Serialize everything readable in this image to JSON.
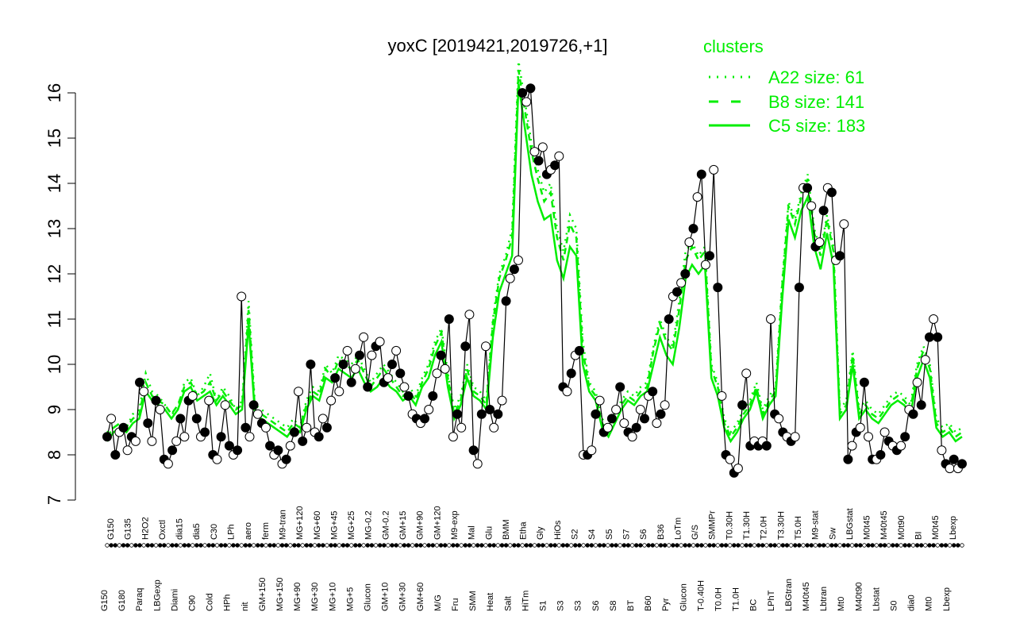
{
  "chart_data": {
    "type": "line",
    "title": "yoxC [2019421,2019726,+1]",
    "xlabel": "",
    "ylabel": "",
    "ylim": [
      7,
      16.6
    ],
    "yticks": [
      7,
      8,
      9,
      10,
      11,
      12,
      13,
      14,
      15,
      16
    ],
    "grid": false,
    "legend": {
      "title": "clusters",
      "placement": "top-right",
      "entries": [
        {
          "label": "A22 size: 61",
          "style": "dotted",
          "color": "#00ee00"
        },
        {
          "label": "B8 size: 141",
          "style": "dashed",
          "color": "#00ee00"
        },
        {
          "label": "C5 size: 183",
          "style": "solid",
          "color": "#00ee00"
        }
      ]
    },
    "x_labels_upper": [
      "G150",
      "G135",
      "H2O2",
      "Oxctl",
      "dia15",
      "dia5",
      "C30",
      "LPh",
      "aero",
      "ferm",
      "M9-tran",
      "MG+120",
      "MG+60",
      "MG+45",
      "MG+25",
      "MG-0.2",
      "GM-0.2",
      "GM+15",
      "GM+90",
      "GM+120",
      "M9-exp",
      "Mal",
      "Glu",
      "BMM",
      "Etha",
      "Gly",
      "HiOs",
      "S2",
      "S4",
      "S5",
      "S7",
      "S6",
      "B36",
      "LoTm",
      "G/S",
      "SMMPr",
      "T0.30H",
      "T1.30H",
      "T2.0H",
      "T3.30H",
      "T5.0H",
      "M9-stat",
      "Sw",
      "LBGstat",
      "M0t45",
      "M40t45",
      "M0t90",
      "BI",
      "M0t45",
      "Lbexp"
    ],
    "x_labels_lower": [
      "G150",
      "G180",
      "Paraq",
      "LBGexp",
      "Diami",
      "C90",
      "Cold",
      "HPh",
      "nit",
      "GM+150",
      "MG+150",
      "MG+90",
      "MG+30",
      "MG+10",
      "MG+5",
      "Glucon",
      "GM+10",
      "GM+30",
      "GM+60",
      "M/G",
      "Fru",
      "SMM",
      "Heat",
      "Salt",
      "HiTm",
      "S1",
      "S3",
      "S3",
      "S6",
      "S8",
      "BT",
      "B60",
      "Pyr",
      "Glucon",
      "T-0.40H",
      "T0.0H",
      "T1.0H",
      "BC",
      "LPhT",
      "LBGtran",
      "M40t45",
      "Lbtran",
      "Mt0",
      "M40t90",
      "Lbstat",
      "S0",
      "dia0",
      "Mt0",
      "Lbexp"
    ],
    "series": [
      {
        "name": "yoxC",
        "values": [
          8.4,
          8.8,
          8.0,
          8.5,
          8.6,
          8.1,
          8.4,
          8.3,
          9.6,
          9.4,
          8.7,
          8.3,
          9.2,
          9.0,
          7.9,
          7.8,
          8.1,
          8.3,
          8.8,
          8.4,
          9.2,
          9.3,
          8.8,
          8.4,
          8.5,
          9.2,
          8.0,
          7.9,
          8.4,
          9.1,
          8.2,
          8.0,
          8.1,
          11.5,
          8.6,
          8.4,
          9.1,
          8.9,
          8.7,
          8.6,
          8.2,
          8.0,
          8.1,
          7.8,
          7.9,
          8.2,
          8.5,
          9.4,
          8.3,
          8.6,
          10.0,
          8.5,
          8.4,
          8.8,
          8.6,
          9.2,
          9.7,
          9.4,
          10.0,
          10.3,
          9.6,
          9.9,
          10.2,
          10.6,
          9.5,
          10.2,
          10.4,
          10.5,
          9.6,
          9.7,
          10.0,
          10.3,
          9.8,
          9.5,
          9.3,
          8.9,
          8.8,
          8.7,
          8.8,
          9.0,
          9.3,
          9.8,
          10.2,
          9.9,
          11.0,
          8.4,
          8.9,
          8.6,
          10.4,
          11.1,
          8.1,
          7.8,
          8.9,
          10.4,
          9.0,
          8.6,
          8.9,
          9.2,
          11.4,
          11.9,
          12.1,
          12.3,
          16.0,
          15.8,
          16.1,
          14.7,
          14.5,
          14.8,
          14.2,
          14.3,
          14.4,
          14.6,
          9.5,
          9.4,
          9.8,
          10.2,
          10.3,
          8.0,
          8.0,
          8.1,
          8.9,
          9.2,
          8.5,
          8.6,
          8.8,
          9.0,
          9.5,
          8.7,
          8.5,
          8.4,
          8.6,
          9.0,
          8.8,
          9.3,
          9.4,
          8.7,
          8.9,
          9.1,
          11.0,
          11.5,
          11.6,
          11.8,
          12.0,
          12.7,
          13.0,
          13.7,
          14.2,
          12.2,
          12.4,
          14.3,
          11.7,
          9.3,
          8.0,
          7.9,
          7.6,
          7.7,
          9.1,
          9.8,
          8.2,
          8.3,
          8.2,
          8.3,
          8.2,
          11.0,
          8.9,
          8.8,
          8.5,
          8.4,
          8.3,
          8.4,
          11.7,
          13.9,
          13.9,
          13.5,
          12.6,
          12.7,
          13.4,
          13.9,
          13.8,
          12.3,
          12.4,
          13.1,
          7.9,
          8.2,
          8.5,
          8.6,
          9.6,
          8.4,
          7.9,
          7.9,
          8.0,
          8.5,
          8.3,
          8.2,
          8.1,
          8.2,
          8.4,
          9.0,
          8.9,
          9.6,
          9.1,
          10.1,
          10.6,
          11.0,
          10.6,
          8.1,
          7.8,
          7.7,
          7.9,
          7.7,
          7.8
        ]
      },
      {
        "name": "A22 size: 61",
        "values": [
          8.5,
          8.6,
          8.7,
          8.6,
          8.9,
          9.0,
          9.8,
          9.4,
          9.3,
          9.1,
          8.9,
          9.0,
          9.6,
          9.7,
          9.3,
          9.5,
          9.8,
          9.2,
          9.5,
          9.3,
          9.0,
          9.2,
          11.4,
          9.1,
          9.0,
          8.9,
          8.8,
          8.7,
          8.6,
          8.8,
          8.6,
          9.2,
          9.5,
          9.4,
          10.0,
          9.8,
          10.2,
          10.1,
          10.0,
          10.2,
          9.9,
          9.6,
          9.8,
          10.0,
          9.8,
          9.6,
          9.4,
          9.5,
          9.3,
          9.7,
          10.0,
          10.5,
          10.8,
          9.8,
          9.0,
          9.3,
          10.0,
          9.5,
          9.4,
          9.2,
          11.0,
          12.0,
          12.4,
          13.0,
          16.7,
          15.8,
          14.9,
          14.3,
          13.8,
          14.0,
          13.0,
          12.5,
          13.3,
          13.0,
          10.5,
          9.6,
          9.4,
          8.8,
          8.6,
          8.9,
          9.2,
          9.4,
          9.3,
          9.5,
          9.6,
          10.4,
          11.0,
          10.6,
          10.4,
          11.4,
          12.5,
          12.7,
          12.4,
          12.6,
          10.0,
          9.6,
          8.8,
          8.5,
          8.7,
          9.0,
          9.2,
          9.6,
          9.0,
          9.3,
          9.5,
          11.8,
          13.6,
          13.2,
          13.8,
          14.2,
          13.0,
          12.5,
          13.3,
          12.6,
          9.0,
          9.2,
          10.3,
          9.0,
          9.2,
          9.0,
          8.9,
          9.1,
          9.3,
          9.4,
          9.3,
          9.1,
          10.0,
          10.4,
          10.0,
          8.8,
          8.6,
          8.7,
          8.5,
          8.6
        ]
      },
      {
        "name": "B8 size: 141",
        "values": [
          8.4,
          8.6,
          8.7,
          8.6,
          8.8,
          8.9,
          9.6,
          9.3,
          9.2,
          9.1,
          8.9,
          9.1,
          9.5,
          9.6,
          9.3,
          9.4,
          9.6,
          9.2,
          9.4,
          9.2,
          9.0,
          9.1,
          11.2,
          9.0,
          8.9,
          8.8,
          8.7,
          8.6,
          8.5,
          8.7,
          8.6,
          9.1,
          9.4,
          9.3,
          9.9,
          9.7,
          10.1,
          10.0,
          9.9,
          10.1,
          9.8,
          9.5,
          9.7,
          9.9,
          9.7,
          9.5,
          9.3,
          9.4,
          9.2,
          9.6,
          9.9,
          10.4,
          10.7,
          9.7,
          8.9,
          9.2,
          9.9,
          9.4,
          9.3,
          9.1,
          10.9,
          11.9,
          12.3,
          12.8,
          16.5,
          15.6,
          14.7,
          14.1,
          13.6,
          13.8,
          12.8,
          12.3,
          13.1,
          12.8,
          10.3,
          9.5,
          9.3,
          8.7,
          8.5,
          8.8,
          9.1,
          9.3,
          9.2,
          9.4,
          9.5,
          10.3,
          10.9,
          10.5,
          10.3,
          11.2,
          12.3,
          12.6,
          12.3,
          12.5,
          9.9,
          9.5,
          8.7,
          8.4,
          8.6,
          8.9,
          9.1,
          9.5,
          8.9,
          9.2,
          9.4,
          11.7,
          13.5,
          13.1,
          13.7,
          14.1,
          12.9,
          12.4,
          13.2,
          12.5,
          8.9,
          9.1,
          10.2,
          8.9,
          9.1,
          8.9,
          8.8,
          9.0,
          9.2,
          9.3,
          9.2,
          9.0,
          9.9,
          10.3,
          9.9,
          8.7,
          8.5,
          8.6,
          8.4,
          8.5
        ]
      },
      {
        "name": "C5 size: 183",
        "values": [
          8.3,
          8.5,
          8.6,
          8.5,
          8.7,
          8.8,
          9.4,
          9.2,
          9.1,
          9.0,
          8.8,
          9.0,
          9.4,
          9.5,
          9.2,
          9.3,
          9.4,
          9.1,
          9.3,
          9.1,
          8.9,
          9.0,
          10.9,
          8.9,
          8.8,
          8.7,
          8.6,
          8.5,
          8.4,
          8.6,
          8.5,
          9.0,
          9.3,
          9.2,
          9.7,
          9.6,
          9.9,
          9.8,
          9.7,
          9.9,
          9.6,
          9.4,
          9.5,
          9.7,
          9.5,
          9.4,
          9.2,
          9.3,
          9.1,
          9.5,
          9.7,
          10.2,
          10.5,
          9.5,
          8.8,
          9.1,
          9.7,
          9.3,
          9.2,
          9.0,
          10.6,
          11.6,
          12.0,
          12.4,
          16.2,
          15.2,
          14.2,
          13.6,
          13.2,
          13.3,
          12.3,
          11.9,
          12.6,
          12.4,
          10.0,
          9.4,
          9.2,
          8.6,
          8.4,
          8.7,
          9.0,
          9.2,
          9.1,
          9.3,
          9.4,
          10.0,
          10.6,
          10.2,
          10.0,
          10.8,
          11.9,
          12.2,
          12.0,
          12.2,
          9.7,
          9.3,
          8.6,
          8.3,
          8.5,
          8.8,
          9.0,
          9.4,
          8.8,
          9.1,
          9.3,
          11.4,
          13.2,
          12.8,
          13.4,
          13.7,
          12.6,
          12.1,
          12.9,
          12.2,
          8.8,
          9.0,
          10.0,
          8.8,
          9.0,
          8.8,
          8.7,
          8.9,
          9.1,
          9.2,
          9.1,
          8.9,
          9.7,
          10.1,
          9.7,
          8.6,
          8.4,
          8.5,
          8.3,
          8.4
        ]
      }
    ]
  }
}
